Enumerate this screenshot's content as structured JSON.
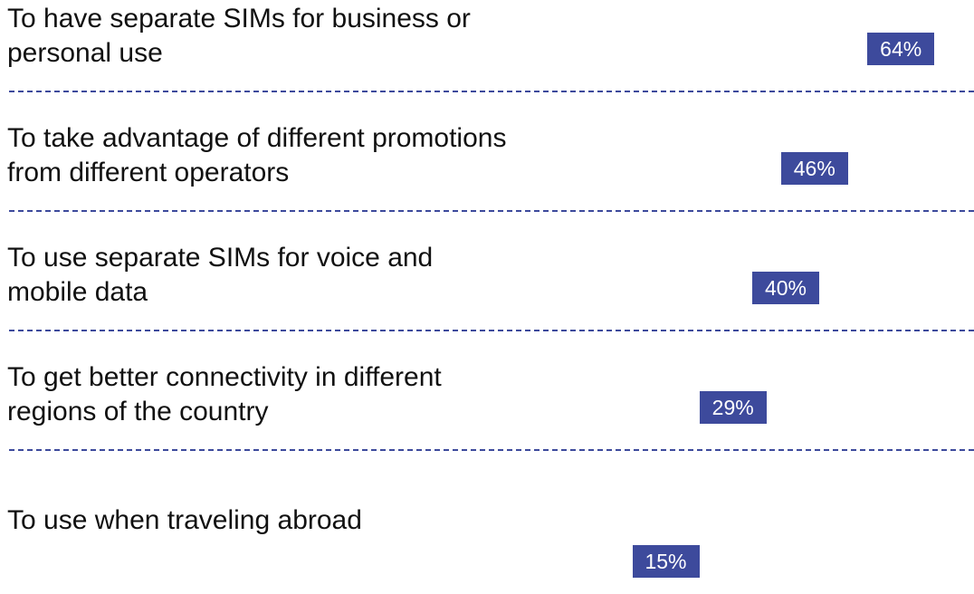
{
  "chart_data": {
    "type": "bar",
    "categories": [
      "To have separate SIMs for business or\npersonal use",
      "To take advantage of different promotions\nfrom different operators",
      "To use separate SIMs for voice and\nmobile data",
      "To get better connectivity in different\nregions of the country",
      "To use when traveling abroad"
    ],
    "values": [
      64,
      46,
      40,
      29,
      15
    ],
    "value_labels": [
      "64%",
      "46%",
      "40%",
      "29%",
      "15%"
    ],
    "color": "#3d4a9c"
  }
}
